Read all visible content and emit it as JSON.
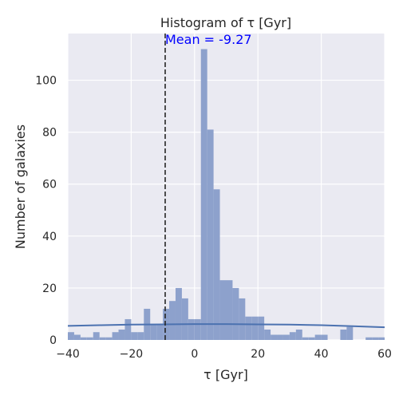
{
  "chart_data": {
    "type": "bar",
    "title": "Histogram of τ [Gyr]",
    "xlabel": "τ [Gyr]",
    "ylabel": "Number of galaxies",
    "xlim": [
      -40,
      60
    ],
    "ylim": [
      0,
      118
    ],
    "xticks": [
      -40,
      -20,
      0,
      20,
      40,
      60
    ],
    "yticks": [
      0,
      20,
      40,
      60,
      80,
      100
    ],
    "grid": true,
    "bin_width": 2,
    "bins": [
      {
        "x": -40,
        "count": 3
      },
      {
        "x": -38,
        "count": 2
      },
      {
        "x": -36,
        "count": 1
      },
      {
        "x": -34,
        "count": 1
      },
      {
        "x": -32,
        "count": 3
      },
      {
        "x": -30,
        "count": 1
      },
      {
        "x": -28,
        "count": 1
      },
      {
        "x": -26,
        "count": 3
      },
      {
        "x": -24,
        "count": 4
      },
      {
        "x": -22,
        "count": 8
      },
      {
        "x": -20,
        "count": 3
      },
      {
        "x": -18,
        "count": 3
      },
      {
        "x": -16,
        "count": 12
      },
      {
        "x": -14,
        "count": 6
      },
      {
        "x": -12,
        "count": 6
      },
      {
        "x": -10,
        "count": 12
      },
      {
        "x": -8,
        "count": 15
      },
      {
        "x": -6,
        "count": 20
      },
      {
        "x": -4,
        "count": 16
      },
      {
        "x": -2,
        "count": 8
      },
      {
        "x": 0,
        "count": 8
      },
      {
        "x": 2,
        "count": 112
      },
      {
        "x": 4,
        "count": 81
      },
      {
        "x": 6,
        "count": 58
      },
      {
        "x": 8,
        "count": 23
      },
      {
        "x": 10,
        "count": 23
      },
      {
        "x": 12,
        "count": 20
      },
      {
        "x": 14,
        "count": 16
      },
      {
        "x": 16,
        "count": 9
      },
      {
        "x": 18,
        "count": 9
      },
      {
        "x": 20,
        "count": 9
      },
      {
        "x": 22,
        "count": 4
      },
      {
        "x": 24,
        "count": 2
      },
      {
        "x": 26,
        "count": 2
      },
      {
        "x": 28,
        "count": 2
      },
      {
        "x": 30,
        "count": 3
      },
      {
        "x": 32,
        "count": 4
      },
      {
        "x": 34,
        "count": 1
      },
      {
        "x": 36,
        "count": 1
      },
      {
        "x": 38,
        "count": 2
      },
      {
        "x": 40,
        "count": 2
      },
      {
        "x": 42,
        "count": 0
      },
      {
        "x": 44,
        "count": 0
      },
      {
        "x": 46,
        "count": 4
      },
      {
        "x": 48,
        "count": 5
      },
      {
        "x": 50,
        "count": 0
      },
      {
        "x": 52,
        "count": 0
      },
      {
        "x": 54,
        "count": 1
      },
      {
        "x": 56,
        "count": 1
      },
      {
        "x": 58,
        "count": 1
      }
    ],
    "kde_curve": {
      "x": [
        -40,
        -30,
        -20,
        -10,
        0,
        10,
        20,
        30,
        40,
        50,
        60
      ],
      "y": [
        5.4,
        5.7,
        5.9,
        6.0,
        6.1,
        6.1,
        6.0,
        5.9,
        5.7,
        5.3,
        4.9
      ]
    },
    "mean": -9.27,
    "mean_label": "Mean = -9.27",
    "colors": {
      "background": "#eaeaf2",
      "grid": "#ffffff",
      "bar": "#8da1cc",
      "kde": "#4c72b0",
      "mean_line": "#262626",
      "mean_text": "#0000ff"
    }
  }
}
